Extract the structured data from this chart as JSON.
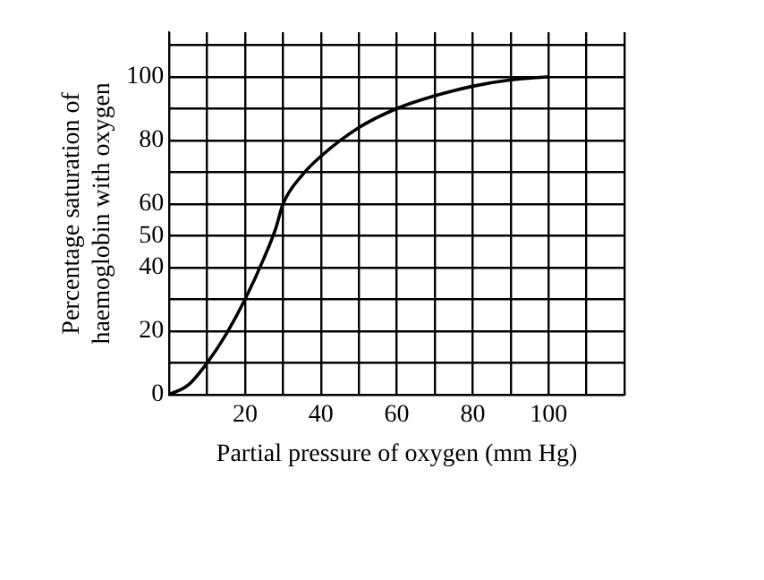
{
  "chart_data": {
    "type": "line",
    "xlabel": "Partial pressure of oxygen (mm Hg)",
    "ylabel": "Percentage saturation of\nhaemoglobin with oxygen",
    "x": [
      0,
      5,
      10,
      15,
      20,
      25,
      28,
      30,
      35,
      40,
      50,
      60,
      70,
      80,
      90,
      100
    ],
    "series": [
      {
        "color": "#000000",
        "values": [
          0,
          3,
          10,
          19,
          30,
          43,
          52,
          60,
          69,
          75,
          84,
          90,
          94,
          97,
          99,
          100
        ]
      }
    ],
    "xlim": [
      0,
      120
    ],
    "xticks": [
      {
        "value": 0,
        "label": null
      },
      {
        "value": 10,
        "label": null
      },
      20,
      {
        "value": 30,
        "label": null
      },
      40,
      {
        "value": 50,
        "label": null
      },
      60,
      {
        "value": 70,
        "label": null
      },
      80,
      {
        "value": 90,
        "label": null
      },
      100,
      {
        "value": 110,
        "label": null
      },
      {
        "value": 120,
        "label": null
      }
    ],
    "ylim": [
      0,
      114
    ],
    "yticks": [
      0,
      {
        "value": 10,
        "label": null
      },
      20,
      {
        "value": 30,
        "label": null
      },
      40,
      50,
      60,
      {
        "value": 70,
        "label": null
      },
      80,
      {
        "value": 90,
        "label": null
      },
      100,
      {
        "value": 110,
        "label": null
      }
    ],
    "grid": true,
    "legend": false,
    "marker": "none",
    "line_style": "solid"
  }
}
